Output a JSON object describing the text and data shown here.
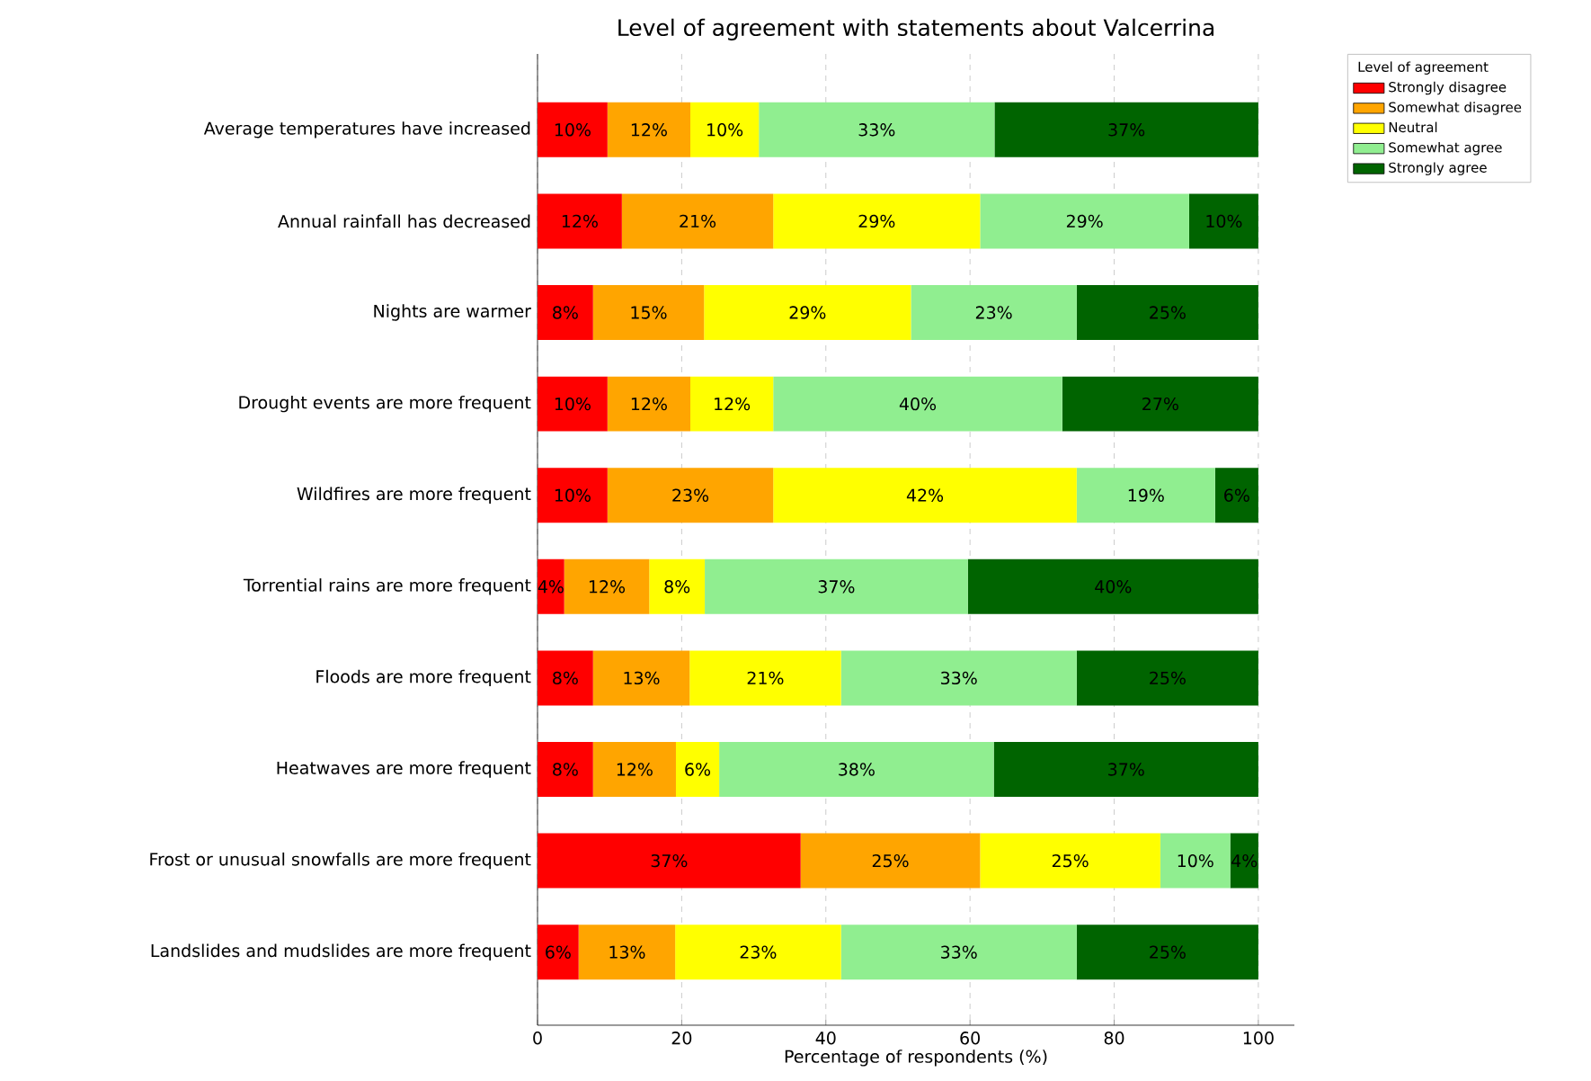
{
  "chart_data": {
    "type": "bar",
    "orientation": "horizontal",
    "stacked": true,
    "title": "Level of agreement with statements about Valcerrina",
    "xlabel": "Percentage of respondents (%)",
    "legend_title": "Level of agreement",
    "legend": "top right",
    "grid": "x",
    "categories": [
      "Average temperatures have increased",
      "Annual rainfall has decreased",
      "Nights are warmer",
      "Drought events are more frequent",
      "Wildfires are more frequent",
      "Torrential rains are more frequent",
      "Floods are more frequent",
      "Heatwaves are more frequent",
      "Frost or unusual snowfalls are more frequent",
      "Landslides and mudslides are more frequent"
    ],
    "xlim": [
      0,
      105
    ],
    "xticks": [
      0,
      20,
      40,
      60,
      80,
      100
    ],
    "series": [
      {
        "name": "Strongly disagree",
        "color": "#ff0000",
        "values": [
          9.7,
          11.7,
          7.7,
          9.7,
          9.7,
          3.7,
          7.7,
          7.7,
          36.5,
          5.7
        ],
        "value_labels": [
          "10%",
          "12%",
          "8%",
          "10%",
          "10%",
          "4%",
          "8%",
          "8%",
          "37%",
          "6%"
        ]
      },
      {
        "name": "Somewhat disagree",
        "color": "#ffa500",
        "values": [
          11.5,
          21.0,
          15.4,
          11.5,
          23.0,
          11.8,
          13.4,
          11.5,
          24.9,
          13.4
        ],
        "value_labels": [
          "12%",
          "21%",
          "15%",
          "12%",
          "23%",
          "12%",
          "13%",
          "12%",
          "25%",
          "13%"
        ]
      },
      {
        "name": "Neutral",
        "color": "#ffff00",
        "values": [
          9.5,
          28.7,
          28.7,
          11.5,
          42.1,
          7.7,
          21.0,
          6.0,
          25.0,
          23.0
        ],
        "value_labels": [
          "10%",
          "29%",
          "29%",
          "12%",
          "42%",
          "8%",
          "21%",
          "6%",
          "25%",
          "23%"
        ]
      },
      {
        "name": "Somewhat agree",
        "color": "#90ee90",
        "values": [
          32.7,
          29.0,
          23.0,
          40.1,
          19.2,
          36.5,
          32.7,
          38.1,
          9.7,
          32.7
        ],
        "value_labels": [
          "33%",
          "29%",
          "23%",
          "40%",
          "19%",
          "37%",
          "33%",
          "38%",
          "10%",
          "33%"
        ]
      },
      {
        "name": "Strongly agree",
        "color": "#006400",
        "values": [
          36.6,
          9.6,
          25.2,
          27.2,
          6.0,
          40.3,
          25.2,
          36.7,
          3.9,
          25.2
        ],
        "value_labels": [
          "37%",
          "10%",
          "25%",
          "27%",
          "6%",
          "40%",
          "25%",
          "37%",
          "4%",
          "25%"
        ]
      }
    ]
  }
}
